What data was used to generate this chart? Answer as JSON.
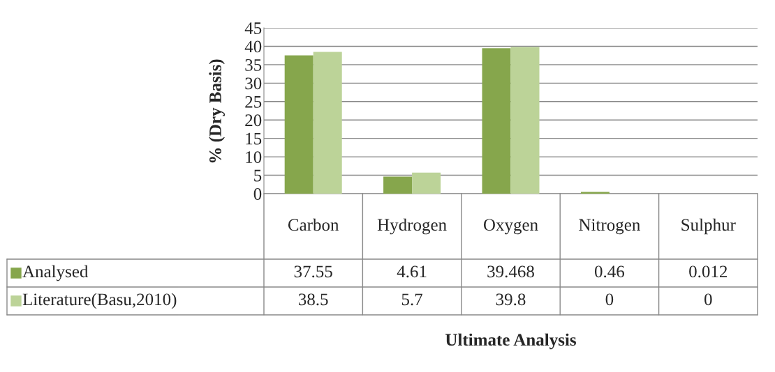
{
  "chart_data": {
    "type": "bar",
    "annotations": [
      "Ultimate Analysis"
    ],
    "ylabel": "% (Dry Basis)",
    "categories": [
      "Carbon",
      "Hydrogen",
      "Oxygen",
      "Nitrogen",
      "Sulphur"
    ],
    "series": [
      {
        "name": "Analysed",
        "color": "#86a64c",
        "values": [
          37.55,
          4.61,
          39.468,
          0.46,
          0.012
        ]
      },
      {
        "name": "Literature(Basu,2010)",
        "color": "#bcd398",
        "values": [
          38.5,
          5.7,
          39.8,
          0,
          0
        ]
      }
    ],
    "ylim": [
      0,
      45
    ],
    "yticks": [
      0,
      5,
      10,
      15,
      20,
      25,
      30,
      35,
      40,
      45
    ],
    "grid": "y",
    "data_labels": true,
    "legend": "bottom"
  }
}
